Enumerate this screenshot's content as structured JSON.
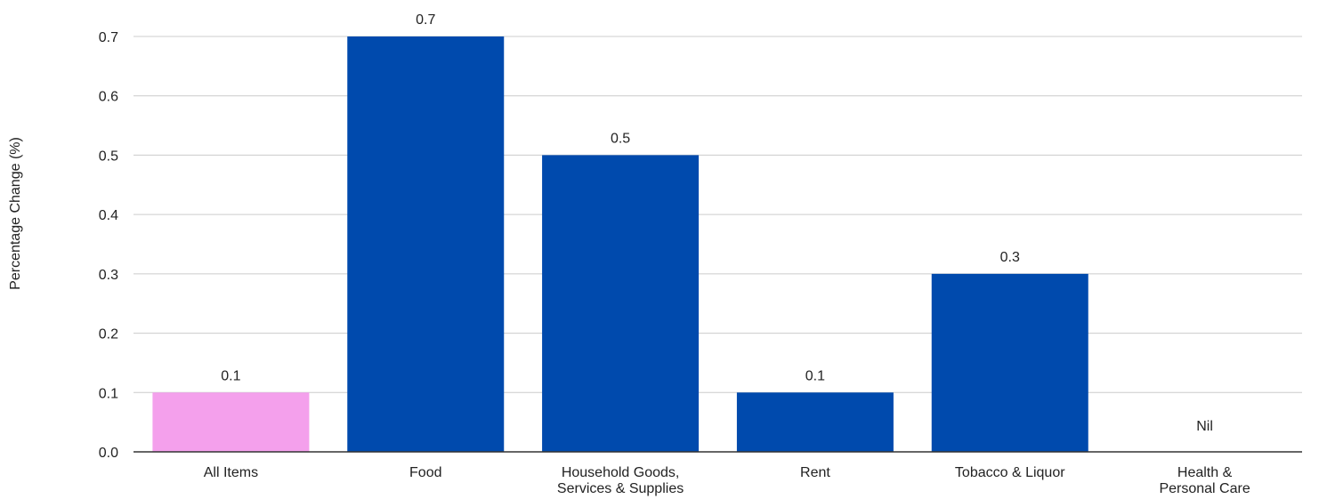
{
  "chart_data": {
    "type": "bar",
    "ylabel": "Percentage Change (%)",
    "ylim": [
      0,
      0.7
    ],
    "yticks": [
      "0.0",
      "0.1",
      "0.2",
      "0.3",
      "0.4",
      "0.5",
      "0.6",
      "0.7"
    ],
    "grid": true,
    "legend": "none",
    "categories": [
      [
        "All Items"
      ],
      [
        "Food"
      ],
      [
        "Household Goods,",
        "Services & Supplies"
      ],
      [
        "Rent"
      ],
      [
        "Tobacco & Liquor"
      ],
      [
        "Health &",
        "Personal Care"
      ]
    ],
    "values": [
      0.1,
      0.7,
      0.5,
      0.1,
      0.3,
      0
    ],
    "data_labels": [
      "0.1",
      "0.7",
      "0.5",
      "0.1",
      "0.3",
      "Nil"
    ],
    "colors": {
      "highlight": "#f4a0ec",
      "bar": "#004aad",
      "grid": "#cccccc",
      "axis": "#333333"
    },
    "highlight_index": 0
  }
}
